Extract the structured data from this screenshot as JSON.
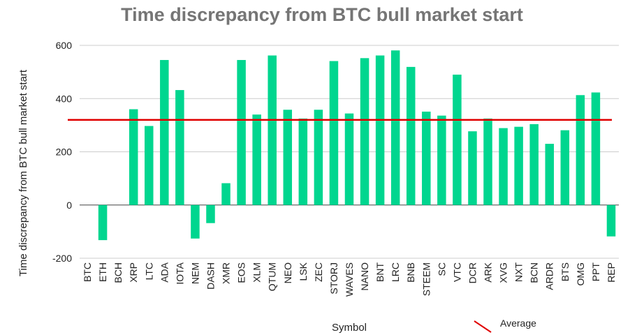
{
  "chart_data": {
    "type": "bar",
    "title": "Time discrepancy from BTC bull market start",
    "xlabel": "Symbol",
    "ylabel": "Time discrepancy from BTC bull market start",
    "ylim": [
      -200,
      600
    ],
    "yticks": [
      -200,
      0,
      200,
      400,
      600
    ],
    "grid": true,
    "categories": [
      "BTC",
      "ETH",
      "BCH",
      "XRP",
      "LTC",
      "ADA",
      "IOTA",
      "NEM",
      "DASH",
      "XMR",
      "EOS",
      "XLM",
      "QTUM",
      "NEO",
      "LSK",
      "ZEC",
      "STORJ",
      "WAVES",
      "NANO",
      "BNT",
      "LRC",
      "BNB",
      "STEEM",
      "SC",
      "VTC",
      "DCR",
      "ARK",
      "XVG",
      "NXT",
      "BCN",
      "ARDR",
      "BTS",
      "OMG",
      "PPT",
      "REP"
    ],
    "series": [
      {
        "name": "Time discrepancy",
        "color": "#00d68f",
        "values": [
          0,
          -132,
          0,
          360,
          297,
          545,
          432,
          -126,
          -68,
          82,
          545,
          340,
          562,
          358,
          325,
          358,
          541,
          344,
          552,
          562,
          581,
          519,
          351,
          336,
          490,
          277,
          325,
          289,
          294,
          304,
          230,
          281,
          413,
          423,
          -118
        ]
      },
      {
        "name": "Average",
        "color": "#e00000",
        "type": "hline",
        "value": 320
      }
    ],
    "legend": {
      "position": "bottom-right",
      "entries": [
        {
          "label": "Average",
          "color": "#e00000"
        }
      ]
    }
  }
}
